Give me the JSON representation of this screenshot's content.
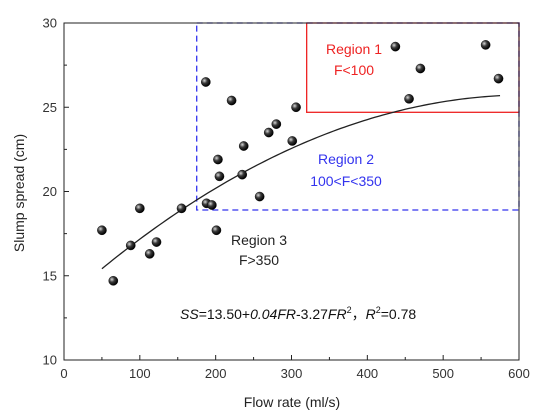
{
  "chart_data": {
    "type": "scatter",
    "xlabel": "Flow rate (ml/s)",
    "ylabel": "Slump spread (cm)",
    "xlim": [
      0,
      600
    ],
    "ylim": [
      10,
      30
    ],
    "xticks": [
      0,
      100,
      200,
      300,
      400,
      500,
      600
    ],
    "yticks": [
      10,
      15,
      20,
      25,
      30
    ],
    "xtick_labels": [
      "0",
      "100",
      "200",
      "300",
      "400",
      "500",
      "600"
    ],
    "ytick_labels": [
      "10",
      "15",
      "20",
      "25",
      "30"
    ],
    "points": [
      {
        "x": 50,
        "y": 17.7
      },
      {
        "x": 65,
        "y": 14.7
      },
      {
        "x": 88,
        "y": 16.8
      },
      {
        "x": 100,
        "y": 19.0
      },
      {
        "x": 113,
        "y": 16.3
      },
      {
        "x": 122,
        "y": 17.0
      },
      {
        "x": 155,
        "y": 19.0
      },
      {
        "x": 187,
        "y": 26.5
      },
      {
        "x": 188,
        "y": 19.3
      },
      {
        "x": 195,
        "y": 19.2
      },
      {
        "x": 201,
        "y": 17.7
      },
      {
        "x": 203,
        "y": 21.9
      },
      {
        "x": 205,
        "y": 20.9
      },
      {
        "x": 221,
        "y": 25.4
      },
      {
        "x": 235,
        "y": 21.0
      },
      {
        "x": 237,
        "y": 22.7
      },
      {
        "x": 258,
        "y": 19.7
      },
      {
        "x": 270,
        "y": 23.5
      },
      {
        "x": 280,
        "y": 24.0
      },
      {
        "x": 301,
        "y": 23.0
      },
      {
        "x": 306,
        "y": 25.0
      },
      {
        "x": 437,
        "y": 28.6
      },
      {
        "x": 455,
        "y": 25.5
      },
      {
        "x": 470,
        "y": 27.3
      },
      {
        "x": 556,
        "y": 28.7
      },
      {
        "x": 573,
        "y": 26.7
      }
    ],
    "fit": {
      "intercept": 13.5,
      "b1": 0.04,
      "b2": -3.27e-05,
      "x_range": [
        50,
        575
      ]
    },
    "regions": [
      {
        "label": "Region 1",
        "condition": "F<100",
        "color": "#ee2222",
        "style": "solid",
        "x": [
          320,
          600
        ],
        "y": [
          24.7,
          30
        ]
      },
      {
        "label": "Region 2",
        "condition": "100<F<350",
        "color": "#3333ee",
        "style": "dashed",
        "x": [
          175,
          600
        ],
        "y": [
          18.9,
          30
        ]
      },
      {
        "label": "Region 3",
        "condition": "F>350",
        "color": "#222222",
        "style": "none"
      }
    ],
    "equation": {
      "ss": "SS",
      "eq1": "=13.50+",
      "coef1": "0.04FR",
      "eq2": "-3.27",
      "fr": "FR",
      "sup2": "2",
      "sep": "，",
      "r": "R",
      "r2val": "=0.78"
    }
  }
}
